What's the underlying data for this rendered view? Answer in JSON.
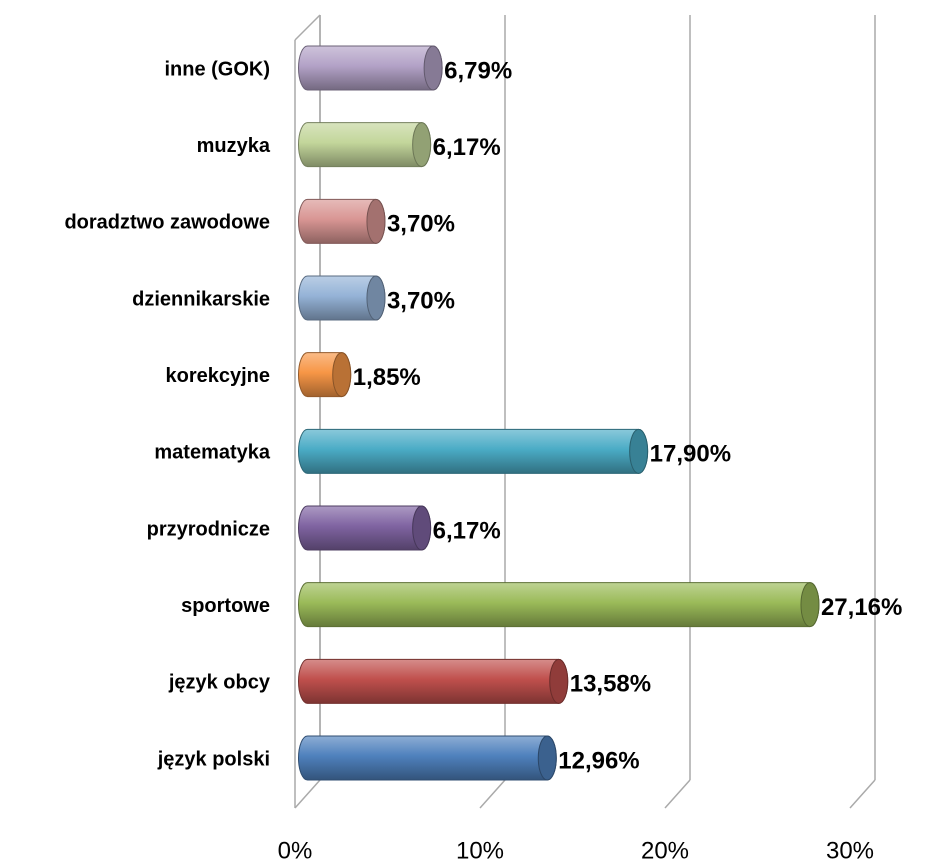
{
  "chart_data": {
    "type": "bar",
    "orientation": "horizontal",
    "categories": [
      "język polski",
      "język obcy",
      "sportowe",
      "przyrodnicze",
      "matematyka",
      "korekcyjne",
      "dziennikarskie",
      "doradztwo zawodowe",
      "muzyka",
      "inne (GOK)"
    ],
    "values": [
      12.96,
      13.58,
      27.16,
      6.17,
      17.9,
      1.85,
      3.7,
      3.7,
      6.17,
      6.79
    ],
    "value_labels": [
      "12,96%",
      "13,58%",
      "27,16%",
      "6,17%",
      "17,90%",
      "1,85%",
      "3,70%",
      "3,70%",
      "6,17%",
      "6,79%"
    ],
    "colors": [
      "#4f81bd",
      "#c0504d",
      "#9bbb59",
      "#8064a2",
      "#4bacc6",
      "#f79646",
      "#95b3d7",
      "#d99694",
      "#c3d69b",
      "#b3a2c7"
    ],
    "xlim": [
      0,
      30
    ],
    "xticks": [
      {
        "value": 0,
        "label": "0%"
      },
      {
        "value": 10,
        "label": "10%"
      },
      {
        "value": 20,
        "label": "20%"
      },
      {
        "value": 30,
        "label": "30%"
      }
    ],
    "grid": true
  }
}
